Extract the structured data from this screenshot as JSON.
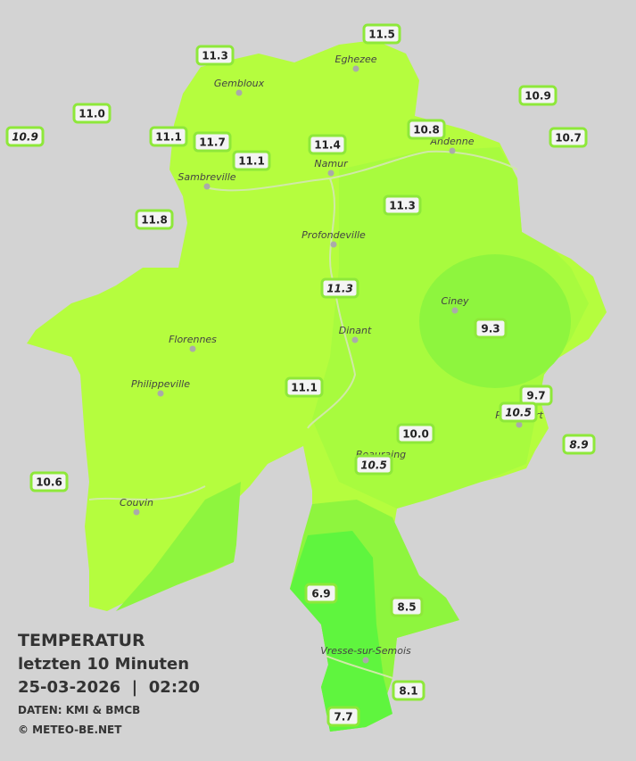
{
  "title": "TEMPERATUR",
  "subtitle": "letzten 10 Minuten",
  "datetime": "25-03-2026  |  02:20",
  "source": "DATEN: KMI & BMCB",
  "copyright": "© METEO-BE.NET",
  "towns": [
    "Eghezee",
    "Gembloux",
    "Andenne",
    "Namur",
    "Sambreville",
    "Profondeville",
    "Ciney",
    "Dinant",
    "Florennes",
    "Philippeville",
    "Rochefort",
    "Beauraing",
    "Couvin",
    "Vresse-sur-Semois"
  ],
  "stations": [
    {
      "label": "11.5",
      "italic": false
    },
    {
      "label": "11.3",
      "italic": false
    },
    {
      "label": "10.9",
      "italic": false
    },
    {
      "label": "11.0",
      "italic": false
    },
    {
      "label": "10.9",
      "italic": true
    },
    {
      "label": "10.8",
      "italic": false
    },
    {
      "label": "10.7",
      "italic": false
    },
    {
      "label": "11.1",
      "italic": false
    },
    {
      "label": "11.7",
      "italic": false
    },
    {
      "label": "11.4",
      "italic": false
    },
    {
      "label": "11.1",
      "italic": false
    },
    {
      "label": "11.3",
      "italic": false
    },
    {
      "label": "11.8",
      "italic": false
    },
    {
      "label": "11.3",
      "italic": true
    },
    {
      "label": "9.3",
      "italic": false
    },
    {
      "label": "11.1",
      "italic": false
    },
    {
      "label": "9.7",
      "italic": false
    },
    {
      "label": "10.5",
      "italic": true
    },
    {
      "label": "10.0",
      "italic": false
    },
    {
      "label": "8.9",
      "italic": true
    },
    {
      "label": "10.5",
      "italic": true
    },
    {
      "label": "10.6",
      "italic": false
    },
    {
      "label": "6.9",
      "italic": false
    },
    {
      "label": "8.5",
      "italic": false
    },
    {
      "label": "8.1",
      "italic": false
    },
    {
      "label": "7.7",
      "italic": false
    }
  ]
}
